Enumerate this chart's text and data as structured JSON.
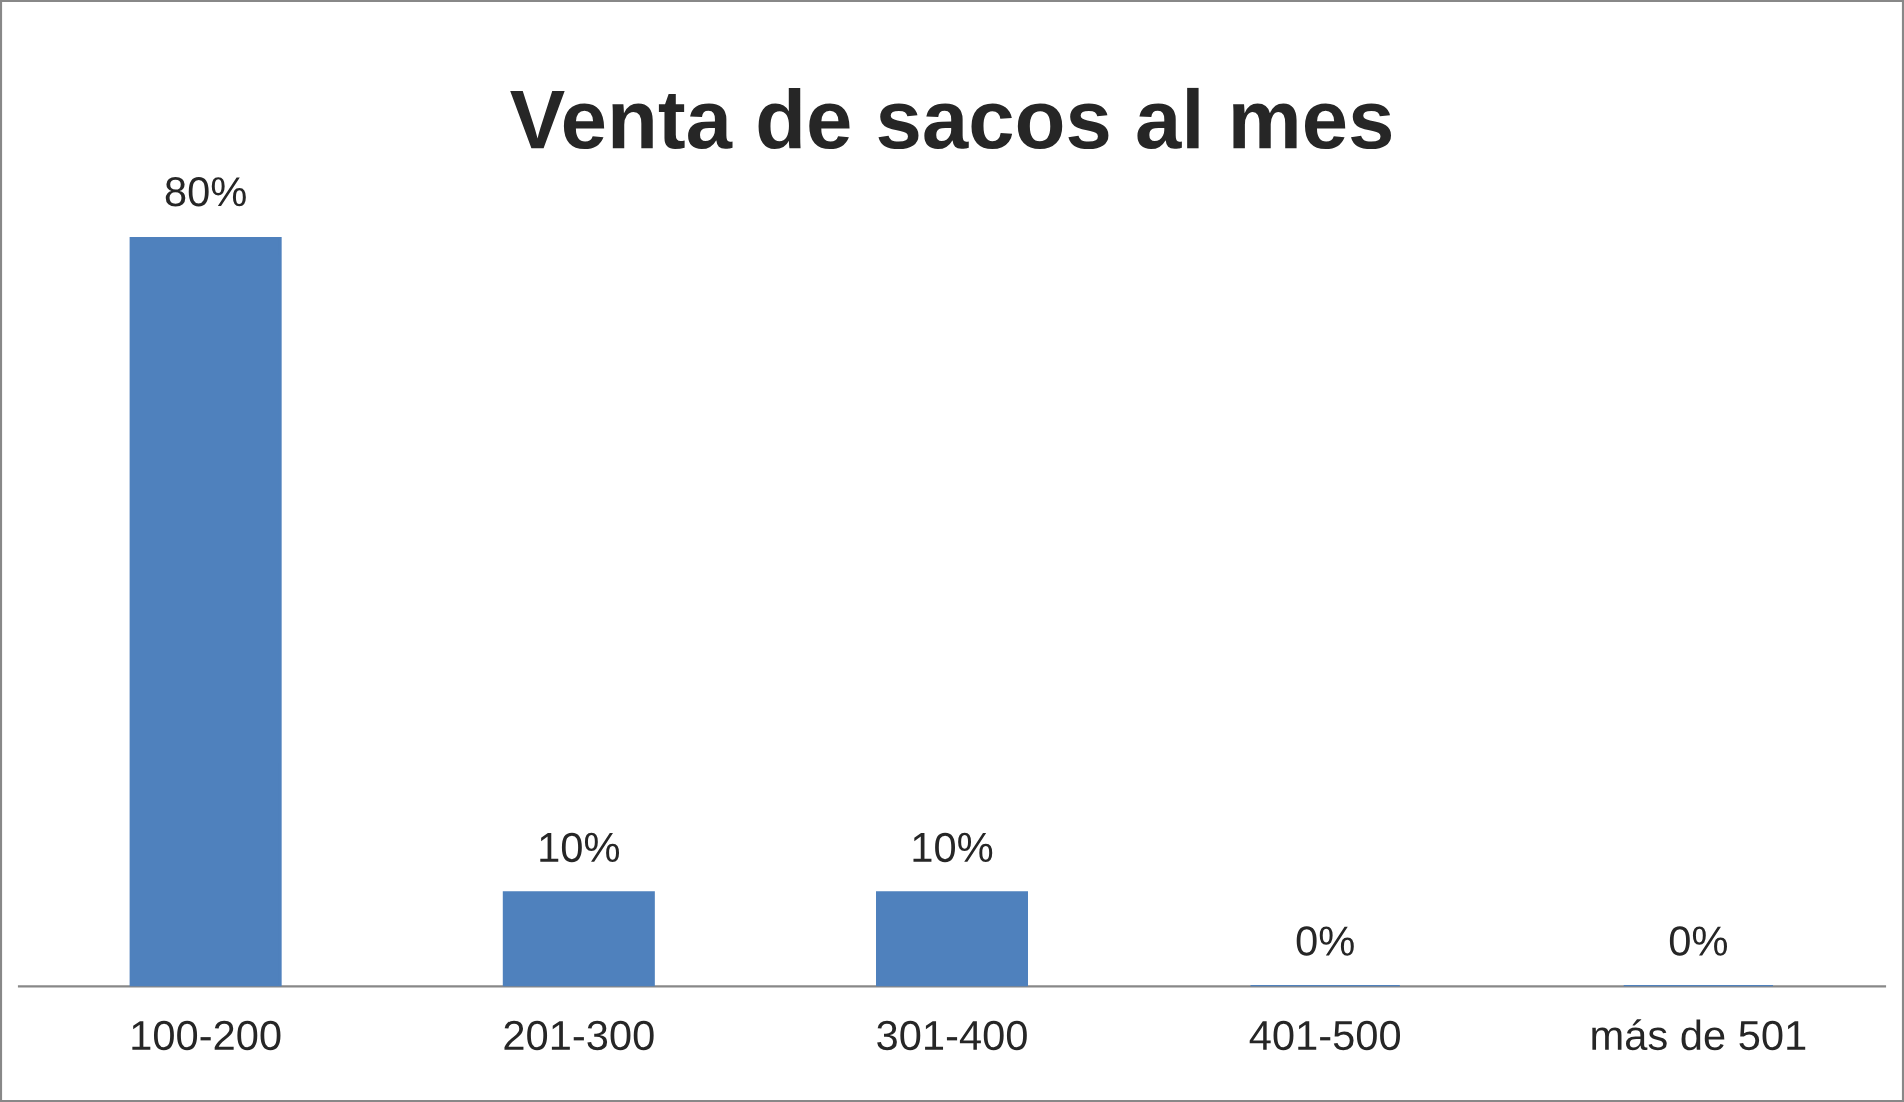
{
  "chart_data": {
    "type": "bar",
    "title": "Venta de sacos al mes",
    "categories": [
      "100-200",
      "201-300",
      "301-400",
      "401-500",
      "más de 501"
    ],
    "values": [
      80,
      10,
      10,
      0,
      0
    ],
    "value_labels": [
      "80%",
      "10%",
      "10%",
      "0%",
      "0%"
    ],
    "color": "#4f81bd",
    "grid": false,
    "legend": false
  }
}
